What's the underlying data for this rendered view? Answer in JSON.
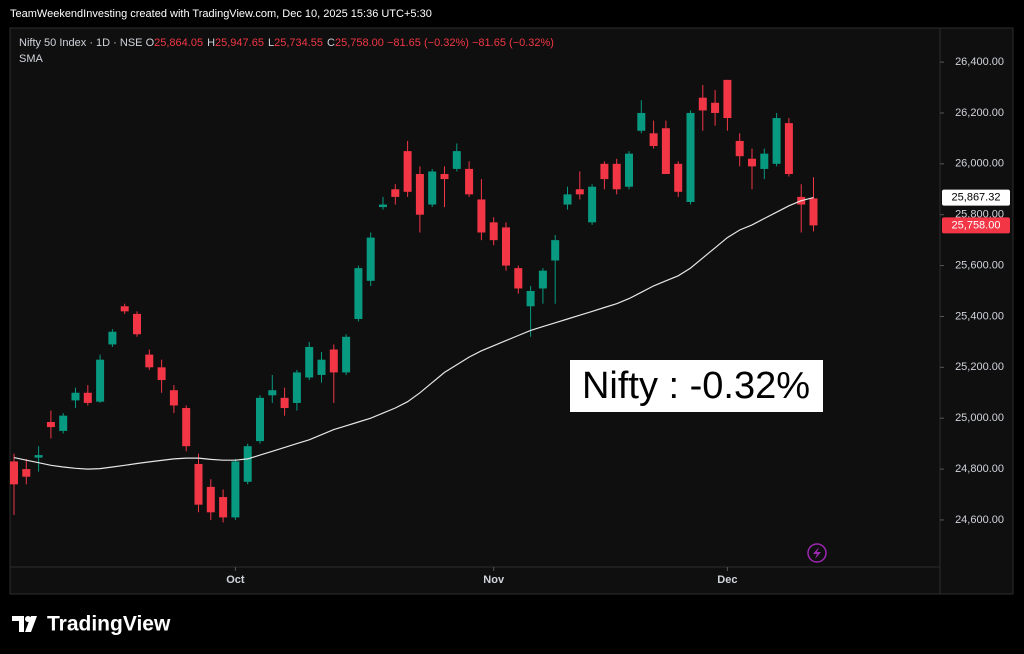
{
  "chart_data": {
    "type": "candlestick",
    "credit": "TeamWeekendInvesting created with TradingView.com, Dec 10, 2025 15:36 UTC+5:30",
    "title": "Nifty 50 Index · 1D · NSE",
    "ohlc_header": [
      {
        "key": "O",
        "text": "25,864.05"
      },
      {
        "key": "H",
        "text": "25,947.65"
      },
      {
        "key": "L",
        "text": "25,734.55"
      },
      {
        "key": "C",
        "text": "25,758.00"
      }
    ],
    "change": "−81.65 (−0.32%)",
    "annotation": "Nifty : -0.32%",
    "brand": "TradingView",
    "up_color": "#089981",
    "down_color": "#f23645",
    "categories": [
      null,
      null,
      null,
      null,
      null,
      null,
      null,
      null,
      null,
      null,
      null,
      null,
      null,
      null,
      null,
      null,
      null,
      null,
      "Oct",
      null,
      null,
      null,
      null,
      null,
      null,
      null,
      null,
      null,
      null,
      null,
      null,
      null,
      null,
      null,
      null,
      null,
      null,
      null,
      null,
      "Nov",
      null,
      null,
      null,
      null,
      null,
      null,
      null,
      null,
      null,
      null,
      null,
      null,
      null,
      null,
      null,
      null,
      null,
      null,
      "Dec",
      null,
      null,
      null,
      null,
      null,
      null,
      null
    ],
    "open": [
      24830,
      24800,
      24845,
      24985,
      24950,
      25070,
      25100,
      25065,
      25290,
      25440,
      25410,
      25250,
      25200,
      25110,
      25040,
      24820,
      24730,
      24690,
      24610,
      24750,
      24910,
      25090,
      25080,
      25060,
      25160,
      25170,
      25270,
      25180,
      25390,
      25540,
      25830,
      25900,
      26050,
      25960,
      25840,
      25960,
      25980,
      25980,
      25860,
      25770,
      25750,
      25590,
      25440,
      25510,
      25620,
      25840,
      25900,
      25770,
      26000,
      26000,
      25910,
      26130,
      26120,
      26140,
      26000,
      25850,
      26260,
      26240,
      26330,
      26090,
      26020,
      25980,
      26000,
      26160,
      25870,
      25864.05
    ],
    "high": [
      24860,
      24840,
      24890,
      25030,
      25020,
      25120,
      25130,
      25250,
      25350,
      25450,
      25420,
      25270,
      25230,
      25130,
      25050,
      24860,
      24760,
      24720,
      24840,
      24900,
      25090,
      25170,
      25120,
      25190,
      25300,
      25260,
      25290,
      25330,
      25600,
      25730,
      25870,
      25920,
      26090,
      25990,
      25980,
      25990,
      26080,
      26010,
      25940,
      25790,
      25770,
      25600,
      25520,
      25590,
      25720,
      25910,
      25970,
      25920,
      26010,
      26020,
      26050,
      26250,
      26170,
      26170,
      26010,
      26210,
      26310,
      26290,
      26330,
      26120,
      26060,
      26060,
      26200,
      26180,
      25920,
      25947.65
    ],
    "low": [
      24620,
      24740,
      24790,
      24920,
      24940,
      25040,
      25050,
      25060,
      25280,
      25410,
      25320,
      25190,
      25100,
      25020,
      24870,
      24630,
      24600,
      24590,
      24600,
      24740,
      24900,
      25060,
      25010,
      25030,
      25150,
      25140,
      25060,
      25170,
      25380,
      25520,
      25820,
      25840,
      25870,
      25730,
      25830,
      25830,
      25970,
      25870,
      25700,
      25680,
      25580,
      25490,
      25320,
      25450,
      25450,
      25820,
      25860,
      25760,
      25900,
      25880,
      25900,
      26120,
      26060,
      25960,
      25870,
      25840,
      26130,
      26150,
      26130,
      25990,
      25900,
      25940,
      25990,
      25950,
      25730,
      25734.55
    ],
    "close": [
      24740,
      24770,
      24855,
      24965,
      25010,
      25100,
      25060,
      25230,
      25340,
      25420,
      25330,
      25200,
      25150,
      25050,
      24890,
      24660,
      24630,
      24610,
      24830,
      24890,
      25080,
      25110,
      25040,
      25180,
      25280,
      25230,
      25180,
      25320,
      25590,
      25710,
      25840,
      25870,
      25890,
      25800,
      25970,
      25940,
      26050,
      25880,
      25730,
      25700,
      25600,
      25510,
      25500,
      25580,
      25700,
      25880,
      25880,
      25910,
      25940,
      25900,
      26040,
      26200,
      26070,
      25960,
      25890,
      26200,
      26210,
      26200,
      26180,
      26030,
      25990,
      26040,
      26180,
      25960,
      25840,
      25758
    ],
    "series": [
      {
        "name": "SMA",
        "color": "#e6e6e6",
        "value_labels_last": "25,867.32",
        "values": [
          24845,
          24835,
          24825,
          24815,
          24808,
          24803,
          24800,
          24802,
          24808,
          24815,
          24822,
          24828,
          24834,
          24840,
          24843,
          24843,
          24838,
          24835,
          24835,
          24840,
          24855,
          24870,
          24885,
          24900,
          24915,
          24935,
          24955,
          24970,
          24985,
          25000,
          25020,
          25040,
          25065,
          25100,
          25140,
          25180,
          25210,
          25240,
          25265,
          25285,
          25305,
          25325,
          25345,
          25360,
          25375,
          25390,
          25405,
          25420,
          25435,
          25450,
          25470,
          25495,
          25520,
          25540,
          25560,
          25590,
          25630,
          25670,
          25710,
          25740,
          25760,
          25785,
          25810,
          25835,
          25855,
          25867.32
        ]
      }
    ],
    "close_label": "25,758.00",
    "ylim": [
      24415,
      26534
    ],
    "yticks": [
      {
        "value": 24600,
        "label": "24,600.00"
      },
      {
        "value": 24800,
        "label": "24,800.00"
      },
      {
        "value": 25000,
        "label": "25,000.00"
      },
      {
        "value": 25200,
        "label": "25,200.00"
      },
      {
        "value": 25400,
        "label": "25,400.00"
      },
      {
        "value": 25600,
        "label": "25,600.00"
      },
      {
        "value": 25800,
        "label": "25,800.00"
      },
      {
        "value": 26000,
        "label": "26,000.00"
      },
      {
        "value": 26200,
        "label": "26,200.00"
      },
      {
        "value": 26400,
        "label": "26,400.00"
      }
    ],
    "grid": false
  }
}
